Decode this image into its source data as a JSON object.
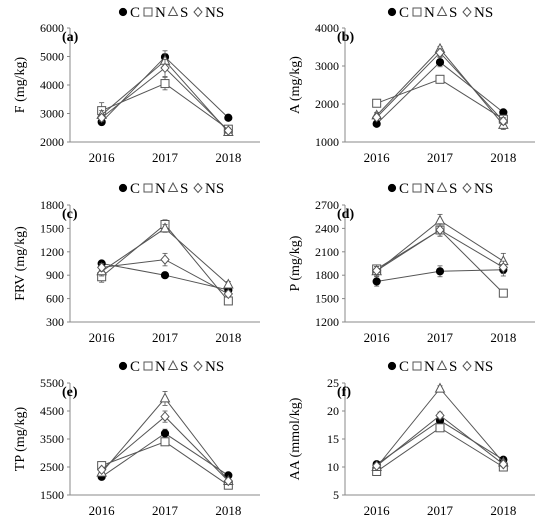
{
  "chart_data": [
    {
      "type": "line",
      "panel_label": "(a)",
      "ylabel": "F (mg/kg)",
      "categories": [
        "2016",
        "2017",
        "2018"
      ],
      "ylim": [
        2000,
        6000
      ],
      "yticks": [
        "2000",
        "3000",
        "4000",
        "5000",
        "6000"
      ],
      "legend": "top",
      "series": [
        {
          "name": "C",
          "values": [
            2700,
            4980,
            2850
          ],
          "err": [
            80,
            220,
            70
          ]
        },
        {
          "name": "N",
          "values": [
            3100,
            4050,
            2450
          ],
          "err": [
            280,
            220,
            90
          ]
        },
        {
          "name": "S",
          "values": [
            2950,
            4850,
            2350
          ],
          "err": [
            150,
            250,
            80
          ]
        },
        {
          "name": "NS",
          "values": [
            2850,
            4600,
            2400
          ],
          "err": [
            120,
            300,
            90
          ]
        }
      ]
    },
    {
      "type": "line",
      "panel_label": "(b)",
      "ylabel": "A (mg/kg)",
      "categories": [
        "2016",
        "2017",
        "2018"
      ],
      "ylim": [
        1000,
        4000
      ],
      "yticks": [
        "1000",
        "2000",
        "3000",
        "4000"
      ],
      "legend": "top",
      "series": [
        {
          "name": "C",
          "values": [
            1480,
            3100,
            1780
          ],
          "err": [
            60,
            120,
            60
          ]
        },
        {
          "name": "N",
          "values": [
            2020,
            2650,
            1600
          ],
          "err": [
            80,
            80,
            100
          ]
        },
        {
          "name": "S",
          "values": [
            1700,
            3450,
            1450
          ],
          "err": [
            80,
            60,
            120
          ]
        },
        {
          "name": "NS",
          "values": [
            1650,
            3350,
            1550
          ],
          "err": [
            80,
            100,
            90
          ]
        }
      ]
    },
    {
      "type": "line",
      "panel_label": "(c)",
      "ylabel": "FRV (mg/kg)",
      "categories": [
        "2016",
        "2017",
        "2018"
      ],
      "ylim": [
        300,
        1800
      ],
      "yticks": [
        "300",
        "600",
        "900",
        "1200",
        "1500",
        "1800"
      ],
      "legend": "top",
      "series": [
        {
          "name": "C",
          "values": [
            1050,
            900,
            710
          ],
          "err": [
            30,
            30,
            40
          ]
        },
        {
          "name": "N",
          "values": [
            880,
            1550,
            570
          ],
          "err": [
            70,
            60,
            40
          ]
        },
        {
          "name": "S",
          "values": [
            950,
            1500,
            780
          ],
          "err": [
            60,
            50,
            40
          ]
        },
        {
          "name": "NS",
          "values": [
            1000,
            1100,
            660
          ],
          "err": [
            50,
            80,
            40
          ]
        }
      ]
    },
    {
      "type": "line",
      "panel_label": "(d)",
      "ylabel": "P (mg/kg)",
      "categories": [
        "2016",
        "2017",
        "2018"
      ],
      "ylim": [
        1200,
        2700
      ],
      "yticks": [
        "1200",
        "1500",
        "1800",
        "2100",
        "2400",
        "2700"
      ],
      "legend": "top",
      "series": [
        {
          "name": "C",
          "values": [
            1720,
            1850,
            1870
          ],
          "err": [
            60,
            70,
            80
          ]
        },
        {
          "name": "N",
          "values": [
            1880,
            2380,
            1570
          ],
          "err": [
            50,
            80,
            40
          ]
        },
        {
          "name": "S",
          "values": [
            1850,
            2500,
            1980
          ],
          "err": [
            60,
            80,
            100
          ]
        },
        {
          "name": "NS",
          "values": [
            1860,
            2380,
            1900
          ],
          "err": [
            50,
            80,
            80
          ]
        }
      ]
    },
    {
      "type": "line",
      "panel_label": "(e)",
      "ylabel": "TP (mg/kg)",
      "categories": [
        "2016",
        "2017",
        "2018"
      ],
      "ylim": [
        1500,
        5500
      ],
      "yticks": [
        "1500",
        "2500",
        "3500",
        "4500",
        "5500"
      ],
      "legend": "top",
      "series": [
        {
          "name": "C",
          "values": [
            2150,
            3700,
            2200
          ],
          "err": [
            60,
            150,
            60
          ]
        },
        {
          "name": "N",
          "values": [
            2550,
            3400,
            1850
          ],
          "err": [
            60,
            120,
            60
          ]
        },
        {
          "name": "S",
          "values": [
            2300,
            4950,
            2000
          ],
          "err": [
            80,
            250,
            60
          ]
        },
        {
          "name": "NS",
          "values": [
            2400,
            4300,
            2000
          ],
          "err": [
            80,
            200,
            60
          ]
        }
      ]
    },
    {
      "type": "line",
      "panel_label": "(f)",
      "ylabel": "AA (mmol/kg)",
      "categories": [
        "2016",
        "2017",
        "2018"
      ],
      "ylim": [
        5,
        25
      ],
      "yticks": [
        "5",
        "10",
        "15",
        "20",
        "25"
      ],
      "legend": "top",
      "series": [
        {
          "name": "C",
          "values": [
            10.5,
            18.3,
            11.3
          ],
          "err": [
            0.4,
            0.6,
            0.4
          ]
        },
        {
          "name": "N",
          "values": [
            9.2,
            17.0,
            10.0
          ],
          "err": [
            0.4,
            0.6,
            0.4
          ]
        },
        {
          "name": "S",
          "values": [
            10.0,
            24.0,
            10.8
          ],
          "err": [
            0.4,
            0.5,
            0.4
          ]
        },
        {
          "name": "NS",
          "values": [
            10.2,
            19.2,
            10.5
          ],
          "err": [
            0.4,
            0.6,
            0.4
          ]
        }
      ]
    }
  ],
  "legend_items": [
    {
      "key": "C",
      "label": "C",
      "marker": "circle-filled"
    },
    {
      "key": "N",
      "label": "N",
      "marker": "square-open"
    },
    {
      "key": "S",
      "label": "S",
      "marker": "triangle-open"
    },
    {
      "key": "NS",
      "label": "NS",
      "marker": "diamond-open"
    }
  ],
  "colors": {
    "line": "#555555",
    "marker_fill_C": "#000000",
    "axis": "#888888"
  }
}
